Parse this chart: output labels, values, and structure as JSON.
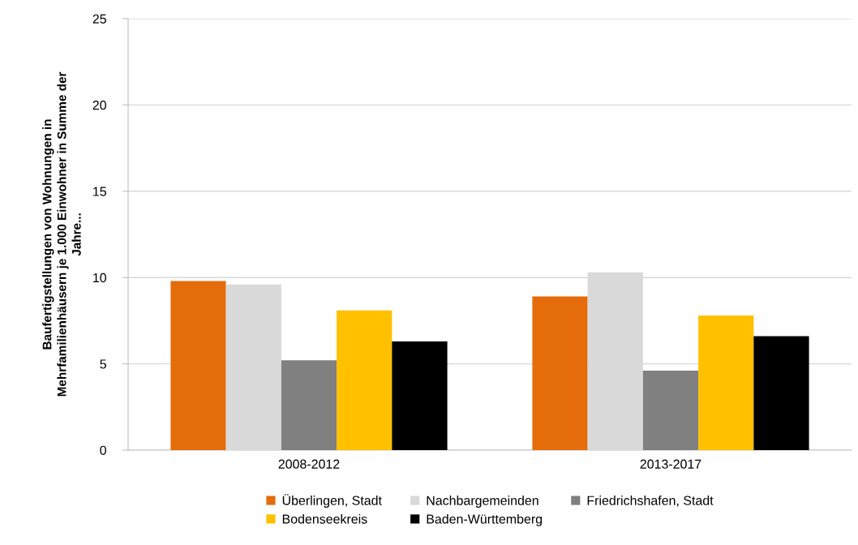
{
  "chart_data": {
    "type": "bar",
    "ylabel": "Baufertigstellungen von Wohnungen in\nMehrfamilienhäusern je 1.000 Einwohner in Summe der\nJahre...",
    "categories": [
      "2008-2012",
      "2013-2017"
    ],
    "series": [
      {
        "name": "Überlingen, Stadt",
        "color": "#e46c0a",
        "values": [
          9.8,
          8.9
        ]
      },
      {
        "name": "Nachbargemeinden",
        "color": "#d9d9d9",
        "values": [
          9.6,
          10.3
        ]
      },
      {
        "name": "Friedrichshafen, Stadt",
        "color": "#808080",
        "values": [
          5.2,
          4.6
        ]
      },
      {
        "name": "Bodenseekreis",
        "color": "#ffc000",
        "values": [
          8.1,
          7.8
        ]
      },
      {
        "name": "Baden-Württemberg",
        "color": "#000000",
        "values": [
          6.3,
          6.6
        ]
      }
    ],
    "ylim": [
      0,
      25
    ],
    "yticks": [
      0,
      5,
      10,
      15,
      20,
      25
    ],
    "grid": "y",
    "legend": "bottom"
  }
}
